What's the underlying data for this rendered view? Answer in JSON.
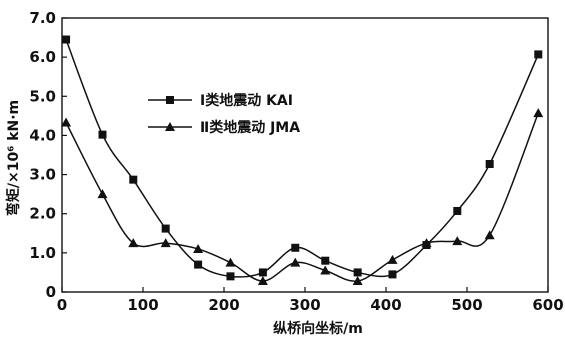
{
  "chart_data": {
    "type": "line",
    "xlabel": "纵桥向坐标/m",
    "ylabel": "弯矩/×10⁶ kN·m",
    "xlim": [
      0,
      600
    ],
    "ylim": [
      0,
      7.0
    ],
    "x_ticks": [
      "0",
      "100",
      "200",
      "300",
      "400",
      "500",
      "600"
    ],
    "y_ticks": [
      "0",
      "1.0",
      "2.0",
      "3.0",
      "4.0",
      "5.0",
      "6.0",
      "7.0"
    ],
    "grid": false,
    "legend_position": "upper-left-center",
    "series": [
      {
        "name": "Ⅰ类地震动 KAI",
        "marker": "square",
        "color": "#111111",
        "points": [
          [
            5,
            6.45
          ],
          [
            50,
            4.02
          ],
          [
            88,
            2.87
          ],
          [
            128,
            1.62
          ],
          [
            168,
            0.7
          ],
          [
            208,
            0.4
          ],
          [
            248,
            0.5
          ],
          [
            288,
            1.13
          ],
          [
            325,
            0.8
          ],
          [
            365,
            0.5
          ],
          [
            408,
            0.45
          ],
          [
            450,
            1.2
          ],
          [
            488,
            2.07
          ],
          [
            528,
            3.27
          ],
          [
            588,
            6.07
          ]
        ]
      },
      {
        "name": "Ⅱ类地震动 JMA",
        "marker": "triangle",
        "color": "#111111",
        "points": [
          [
            5,
            4.33
          ],
          [
            50,
            2.5
          ],
          [
            88,
            1.25
          ],
          [
            128,
            1.25
          ],
          [
            168,
            1.1
          ],
          [
            208,
            0.75
          ],
          [
            248,
            0.28
          ],
          [
            288,
            0.75
          ],
          [
            325,
            0.55
          ],
          [
            365,
            0.28
          ],
          [
            408,
            0.82
          ],
          [
            450,
            1.25
          ],
          [
            488,
            1.3
          ],
          [
            528,
            1.45
          ],
          [
            588,
            4.57
          ]
        ]
      }
    ]
  }
}
